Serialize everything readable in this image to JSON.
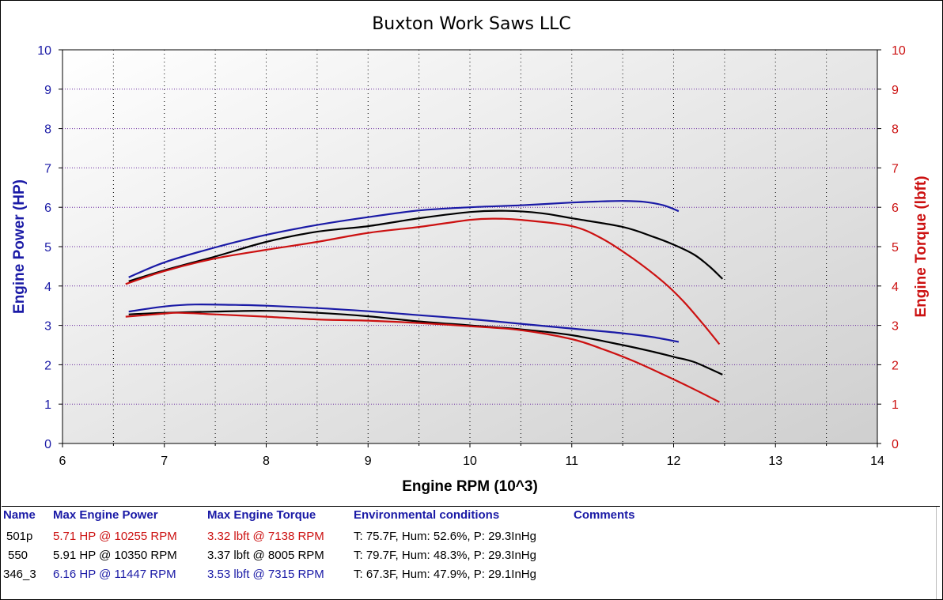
{
  "chart_data": {
    "type": "line",
    "title": "Buxton Work Saws LLC",
    "xlabel": "Engine RPM (10^3)",
    "ylabel_left": "Engine Power (HP)",
    "ylabel_right": "Engine Torque (lbft)",
    "xlim": [
      6,
      14
    ],
    "ylim_left": [
      0,
      10
    ],
    "ylim_right": [
      0,
      10
    ],
    "grid": true,
    "x_ticks": [
      "6",
      "7",
      "8",
      "9",
      "10",
      "11",
      "12",
      "13",
      "14"
    ],
    "y_ticks": [
      "0",
      "1",
      "2",
      "3",
      "4",
      "5",
      "6",
      "7",
      "8",
      "9",
      "10"
    ],
    "colors": {
      "blue": "#1a1aa6",
      "black": "#000000",
      "red": "#cc1111"
    },
    "series": [
      {
        "name": "346_3",
        "kind": "power",
        "axis": "left",
        "color": "#1a1aa6",
        "x": [
          6.65,
          7.0,
          7.5,
          8.0,
          8.5,
          9.0,
          9.5,
          10.0,
          10.5,
          11.0,
          11.3,
          11.5,
          11.7,
          11.9,
          12.05
        ],
        "y": [
          4.22,
          4.6,
          4.98,
          5.3,
          5.55,
          5.75,
          5.92,
          6.0,
          6.05,
          6.12,
          6.15,
          6.16,
          6.14,
          6.05,
          5.9
        ]
      },
      {
        "name": "550",
        "kind": "power",
        "axis": "left",
        "color": "#000000",
        "x": [
          6.65,
          7.0,
          7.5,
          8.0,
          8.5,
          9.0,
          9.5,
          10.0,
          10.35,
          10.7,
          11.0,
          11.5,
          11.8,
          12.0,
          12.2,
          12.35,
          12.48
        ],
        "y": [
          4.12,
          4.4,
          4.75,
          5.12,
          5.38,
          5.52,
          5.72,
          5.88,
          5.91,
          5.85,
          5.72,
          5.5,
          5.25,
          5.05,
          4.8,
          4.5,
          4.18
        ]
      },
      {
        "name": "501p",
        "kind": "power",
        "axis": "left",
        "color": "#cc1111",
        "x": [
          6.62,
          7.0,
          7.5,
          8.0,
          8.5,
          9.0,
          9.5,
          10.0,
          10.25,
          10.5,
          11.0,
          11.3,
          11.6,
          11.9,
          12.1,
          12.3,
          12.45
        ],
        "y": [
          4.05,
          4.38,
          4.7,
          4.92,
          5.12,
          5.35,
          5.5,
          5.68,
          5.71,
          5.68,
          5.52,
          5.2,
          4.7,
          4.1,
          3.6,
          3.0,
          2.52
        ]
      },
      {
        "name": "346_3",
        "kind": "torque",
        "axis": "right",
        "color": "#1a1aa6",
        "x": [
          6.65,
          7.0,
          7.3,
          7.7,
          8.0,
          8.5,
          9.0,
          9.5,
          10.0,
          10.5,
          11.0,
          11.5,
          11.8,
          12.05
        ],
        "y": [
          3.35,
          3.48,
          3.53,
          3.52,
          3.5,
          3.44,
          3.36,
          3.26,
          3.16,
          3.04,
          2.92,
          2.8,
          2.7,
          2.58
        ]
      },
      {
        "name": "550",
        "kind": "torque",
        "axis": "right",
        "color": "#000000",
        "x": [
          6.65,
          7.0,
          7.5,
          8.0,
          8.5,
          9.0,
          9.5,
          10.0,
          10.5,
          11.0,
          11.5,
          11.8,
          12.0,
          12.2,
          12.48
        ],
        "y": [
          3.28,
          3.32,
          3.35,
          3.37,
          3.32,
          3.23,
          3.1,
          3.0,
          2.9,
          2.75,
          2.5,
          2.33,
          2.2,
          2.07,
          1.75
        ]
      },
      {
        "name": "501p",
        "kind": "torque",
        "axis": "right",
        "color": "#cc1111",
        "x": [
          6.62,
          7.0,
          7.14,
          7.5,
          8.0,
          8.5,
          9.0,
          9.5,
          10.0,
          10.5,
          11.0,
          11.3,
          11.6,
          11.9,
          12.2,
          12.45
        ],
        "y": [
          3.22,
          3.3,
          3.32,
          3.28,
          3.22,
          3.15,
          3.12,
          3.06,
          2.98,
          2.88,
          2.65,
          2.4,
          2.1,
          1.75,
          1.38,
          1.05
        ]
      }
    ]
  },
  "results": {
    "headers": {
      "name": "Name",
      "power": "Max Engine Power",
      "torque": "Max Engine Torque",
      "env": "Environmental conditions",
      "comments": "Comments"
    },
    "rows": [
      {
        "name": "501p",
        "power": "5.71 HP @ 10255 RPM",
        "torque": "3.32 lbft @ 7138 RPM",
        "env": "T: 75.7F, Hum: 52.6%, P: 29.3InHg",
        "comments": "",
        "color": "#cc1111"
      },
      {
        "name": "550",
        "power": "5.91 HP @ 10350 RPM",
        "torque": "3.37 lbft @ 8005 RPM",
        "env": "T: 79.7F, Hum: 48.3%, P: 29.3InHg",
        "comments": "",
        "color": "#000000"
      },
      {
        "name": "346_3",
        "power": "6.16 HP @ 11447 RPM",
        "torque": "3.53 lbft @ 7315 RPM",
        "env": "T: 67.3F, Hum: 47.9%, P: 29.1InHg",
        "comments": "",
        "color": "#1a1aa6"
      }
    ]
  }
}
